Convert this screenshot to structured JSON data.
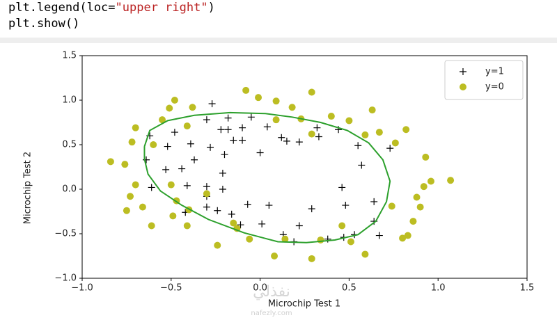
{
  "code": [
    [
      {
        "t": "plt.legend(loc=",
        "k": "plain"
      },
      {
        "t": "\"upper right\"",
        "k": "string"
      },
      {
        "t": ")",
        "k": "plain"
      }
    ],
    [
      {
        "t": "plt.show()",
        "k": "plain"
      }
    ]
  ],
  "watermark": [
    "نفذلي",
    "nafezly.com"
  ],
  "chart_data": {
    "type": "scatter",
    "xlabel": "Microchip Test 1",
    "ylabel": "Microchip Test 2",
    "xlim": [
      -1.0,
      1.5
    ],
    "ylim": [
      -1.0,
      1.5
    ],
    "xticks": [
      {
        "value": -1.0,
        "label": "−1.0"
      },
      {
        "value": -0.5,
        "label": "−0.5"
      },
      {
        "value": 0,
        "label": "0.0"
      },
      {
        "value": 0.5,
        "label": "0.5"
      },
      {
        "value": 1.0,
        "label": "1.0"
      },
      {
        "value": 1.5,
        "label": "1.5"
      }
    ],
    "yticks": [
      {
        "value": -1.0,
        "label": "−1.0"
      },
      {
        "value": -0.5,
        "label": "−0.5"
      },
      {
        "value": 0,
        "label": "0.0"
      },
      {
        "value": 0.5,
        "label": "0.5"
      },
      {
        "value": 1.0,
        "label": "1.0"
      },
      {
        "value": 1.5,
        "label": "1.5"
      }
    ],
    "legend": "upper right",
    "series": [
      {
        "name": "y=1",
        "marker": "plus",
        "color": "#000000",
        "x": [
          -0.62,
          -0.27,
          -0.48,
          -0.3,
          -0.18,
          -0.18,
          -0.1,
          -0.05,
          0.04,
          -0.15,
          -0.1,
          -0.22,
          -0.52,
          -0.39,
          -0.28,
          -0.2,
          0.0,
          -0.64,
          -0.53,
          -0.44,
          -0.37,
          -0.21,
          -0.61,
          -0.41,
          -0.3,
          -0.21,
          -0.3,
          -0.42,
          -0.3,
          -0.24,
          -0.16,
          -0.07,
          0.05,
          -0.11,
          0.01,
          0.13,
          0.19,
          0.22,
          0.29,
          0.12,
          0.15,
          0.22,
          0.32,
          0.33,
          0.44,
          0.55,
          0.57,
          0.73,
          0.46,
          0.48,
          0.64,
          0.64,
          0.67,
          0.53,
          0.47,
          0.38
        ],
        "y": [
          0.6,
          0.96,
          0.64,
          0.78,
          0.8,
          0.67,
          0.69,
          0.81,
          0.7,
          0.55,
          0.55,
          0.67,
          0.48,
          0.51,
          0.47,
          0.39,
          0.41,
          0.33,
          0.22,
          0.23,
          0.33,
          0.18,
          0.02,
          0.04,
          0.03,
          0.0,
          -0.08,
          -0.26,
          -0.2,
          -0.24,
          -0.28,
          -0.17,
          -0.18,
          -0.4,
          -0.39,
          -0.51,
          -0.59,
          -0.41,
          -0.22,
          0.58,
          0.54,
          0.53,
          0.69,
          0.59,
          0.67,
          0.49,
          0.27,
          0.46,
          0.02,
          -0.18,
          -0.14,
          -0.36,
          -0.52,
          -0.51,
          -0.54,
          -0.56
        ]
      },
      {
        "name": "y=0",
        "marker": "circle",
        "color": "#bcbd22",
        "x": [
          -0.84,
          -0.76,
          -0.72,
          -0.7,
          -0.7,
          -0.73,
          -0.75,
          -0.66,
          -0.61,
          -0.55,
          -0.6,
          -0.51,
          -0.48,
          -0.38,
          -0.41,
          -0.5,
          -0.47,
          -0.49,
          -0.41,
          -0.4,
          -0.3,
          -0.24,
          -0.15,
          -0.13,
          -0.08,
          -0.01,
          0.09,
          0.18,
          0.09,
          0.23,
          0.29,
          0.29,
          0.4,
          0.5,
          0.63,
          0.59,
          0.67,
          0.76,
          0.82,
          0.93,
          0.92,
          0.96,
          1.07,
          0.88,
          0.9,
          0.86,
          0.8,
          0.83,
          0.74,
          0.46,
          0.51,
          0.59,
          0.34,
          0.14,
          0.08,
          -0.06,
          0.29
        ],
        "y": [
          0.31,
          0.28,
          0.53,
          0.69,
          0.05,
          -0.08,
          -0.24,
          -0.2,
          -0.41,
          0.78,
          0.5,
          0.91,
          1.0,
          0.92,
          0.71,
          0.05,
          -0.13,
          -0.3,
          -0.41,
          -0.23,
          -0.05,
          -0.63,
          -0.38,
          -0.44,
          1.11,
          1.03,
          0.99,
          0.92,
          0.78,
          0.79,
          1.09,
          0.62,
          0.82,
          0.77,
          0.89,
          0.61,
          0.64,
          0.52,
          0.67,
          0.36,
          0.03,
          0.09,
          0.1,
          -0.09,
          -0.2,
          -0.36,
          -0.55,
          -0.52,
          -0.19,
          -0.41,
          -0.59,
          -0.73,
          -0.57,
          -0.56,
          -0.75,
          -0.56,
          -0.78
        ]
      }
    ],
    "boundary": {
      "color": "#2ca02c",
      "x": [
        -0.65,
        -0.62,
        -0.52,
        -0.37,
        -0.17,
        0.03,
        0.18,
        0.34,
        0.49,
        0.61,
        0.69,
        0.73,
        0.71,
        0.65,
        0.55,
        0.42,
        0.26,
        0.1,
        -0.09,
        -0.29,
        -0.44,
        -0.56,
        -0.63,
        -0.65,
        -0.65
      ],
      "y": [
        0.48,
        0.66,
        0.77,
        0.83,
        0.86,
        0.85,
        0.81,
        0.75,
        0.66,
        0.52,
        0.33,
        0.09,
        -0.14,
        -0.36,
        -0.51,
        -0.57,
        -0.6,
        -0.59,
        -0.49,
        -0.34,
        -0.18,
        -0.02,
        0.17,
        0.34,
        0.48
      ]
    }
  }
}
